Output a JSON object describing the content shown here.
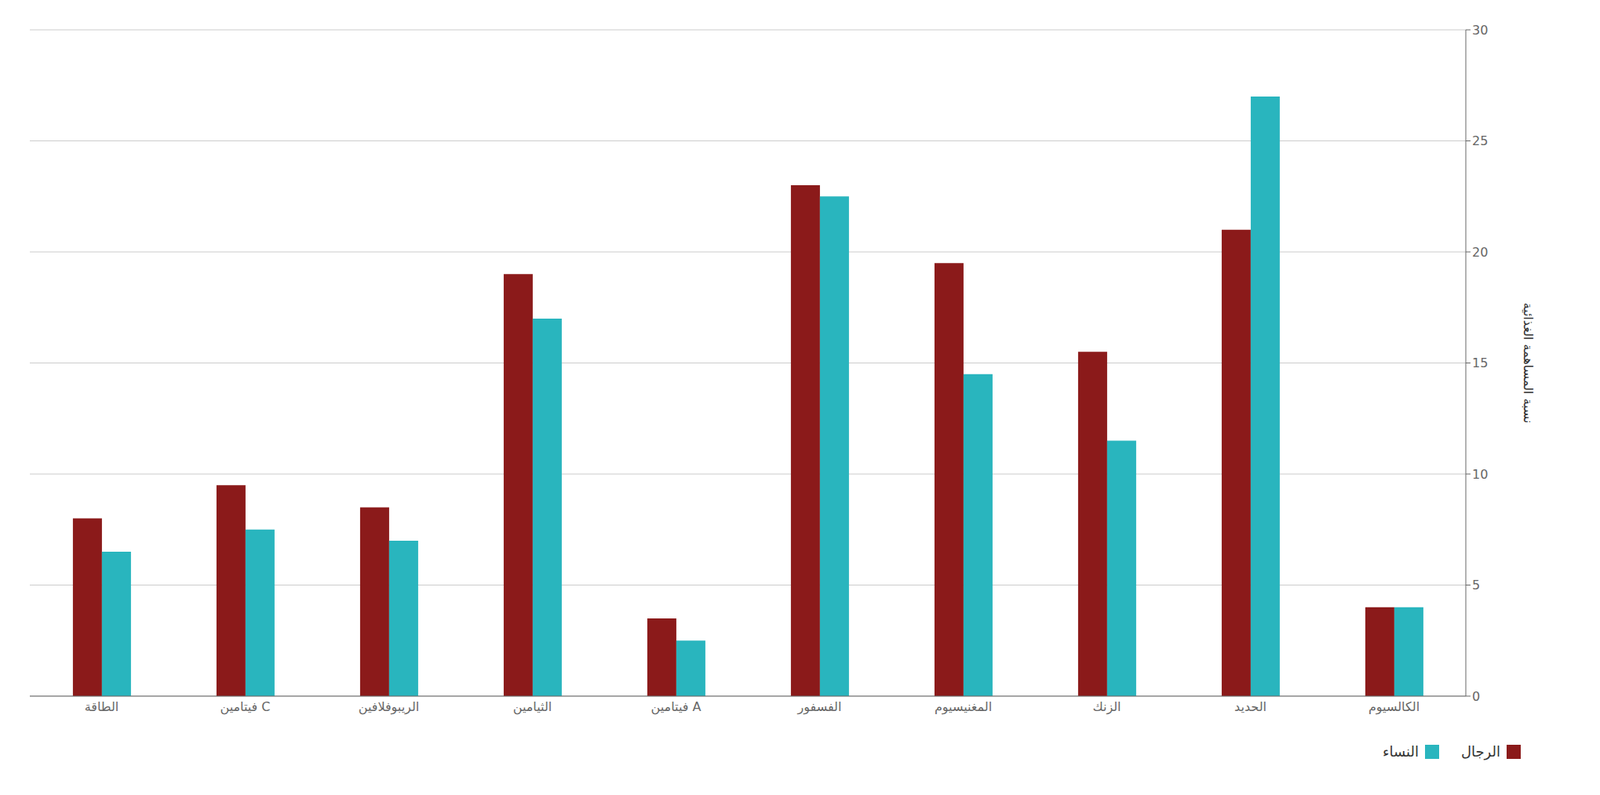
{
  "chart_data": {
    "type": "bar",
    "categories": [
      "الطاقة",
      "فيتامين C",
      "الريبوفلافين",
      "الثيامين",
      "فيتامين A",
      "الفسفور",
      "المغنيسيوم",
      "الزنك",
      "الحديد",
      "الكالسيوم"
    ],
    "series": [
      {
        "name": "الرجال",
        "color": "#8B1A1A",
        "values": [
          8.0,
          9.5,
          8.5,
          19.0,
          3.5,
          23.0,
          19.5,
          15.5,
          21.0,
          4.0
        ]
      },
      {
        "name": "النساء",
        "color": "#29B5BE",
        "values": [
          6.5,
          7.5,
          7.0,
          17.0,
          2.5,
          22.5,
          14.5,
          11.5,
          27.0,
          4.0
        ]
      }
    ],
    "ylabel": "نسبة المساهمة الغذائية",
    "ylim": [
      0,
      30
    ],
    "yticks": [
      0,
      5,
      10,
      15,
      20,
      25,
      30
    ],
    "grid": true,
    "legend": "lower right"
  }
}
